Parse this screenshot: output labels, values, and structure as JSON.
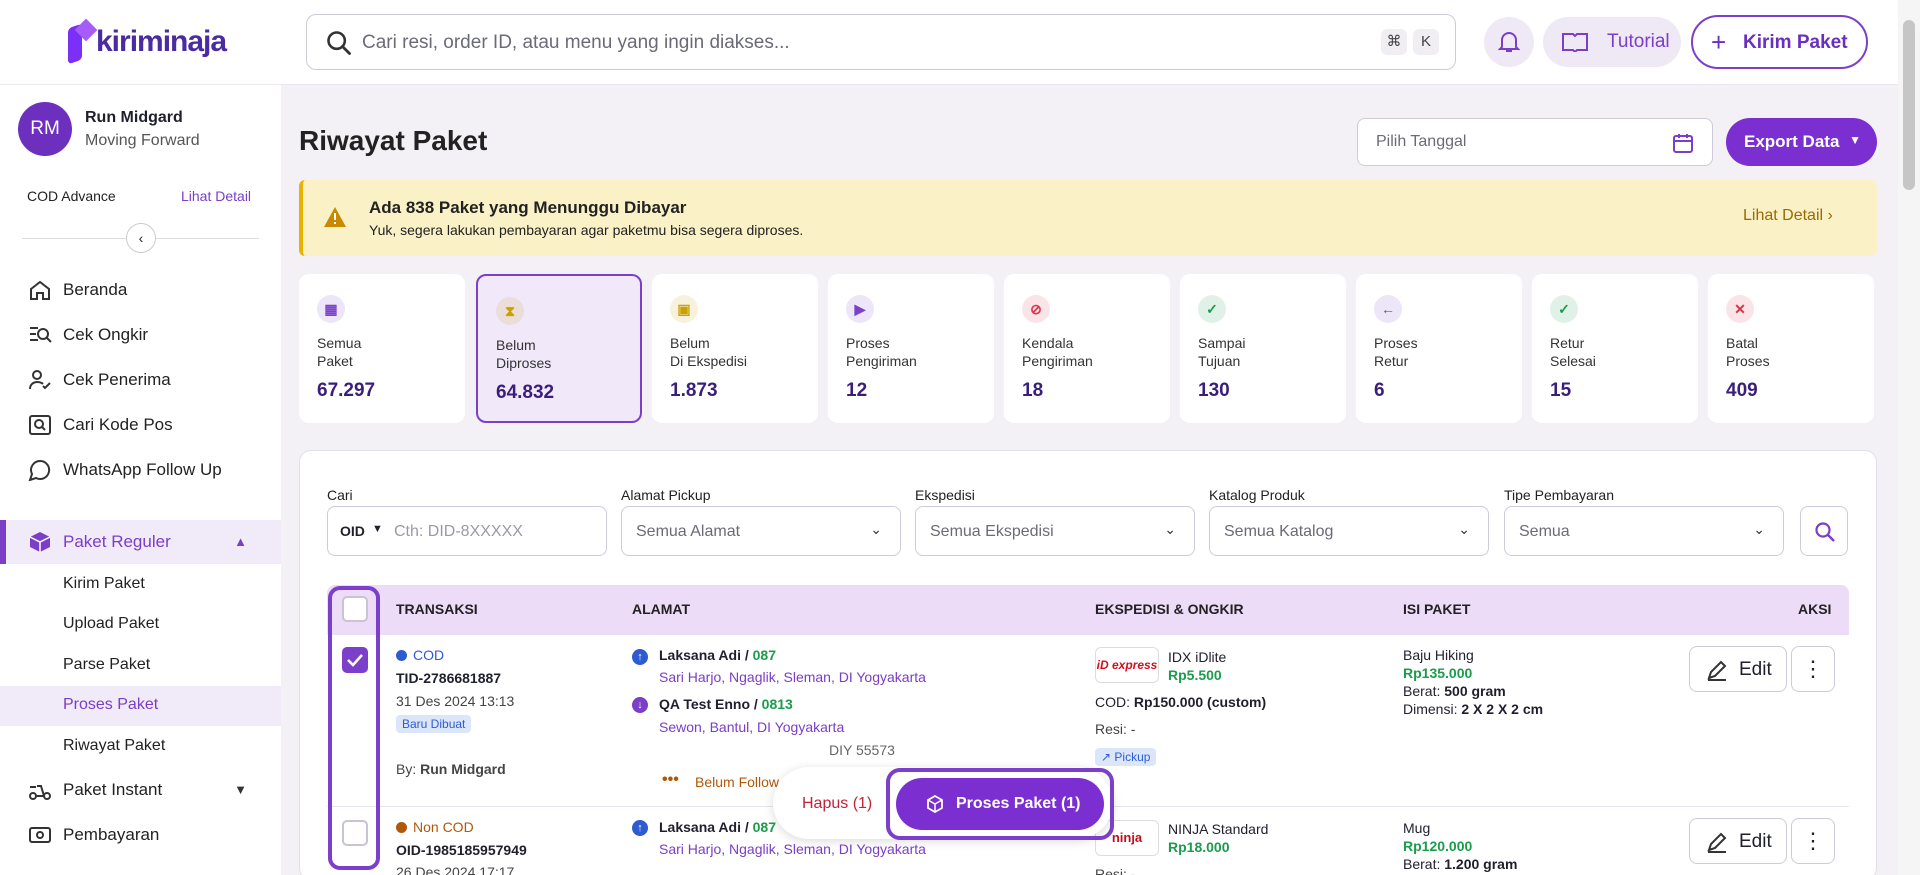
{
  "brand": {
    "name": "kiriminaja"
  },
  "search": {
    "placeholder": "Cari resi, order ID, atau menu yang ingin diakses...",
    "k1": "⌘",
    "k2": "K"
  },
  "header": {
    "tutorial": "Tutorial",
    "kirim": "Kirim Paket"
  },
  "user": {
    "initials": "RM",
    "name": "Run Midgard",
    "tag": "Moving Forward",
    "cod": "COD Advance",
    "detail": "Lihat Detail"
  },
  "nav": [
    {
      "label": "Beranda",
      "icon": "home-icon"
    },
    {
      "label": "Cek Ongkir",
      "icon": "price-search-icon"
    },
    {
      "label": "Cek Penerima",
      "icon": "user-check-icon"
    },
    {
      "label": "Cari Kode Pos",
      "icon": "postcode-icon"
    },
    {
      "label": "WhatsApp Follow Up",
      "icon": "whatsapp-icon"
    }
  ],
  "paket_reguler": {
    "label": "Paket Reguler",
    "subs": [
      "Kirim Paket",
      "Upload Paket",
      "Parse Paket",
      "Proses Paket",
      "Riwayat Paket"
    ]
  },
  "nav2": [
    {
      "label": "Paket Instant"
    },
    {
      "label": "Pembayaran"
    }
  ],
  "page": {
    "title": "Riwayat Paket",
    "date_placeholder": "Pilih Tanggal",
    "export": "Export Data"
  },
  "alert": {
    "title": "Ada 838 Paket yang Menunggu Dibayar",
    "subtitle": "Yuk, segera lakukan pembayaran agar paketmu bisa segera diproses.",
    "link": "Lihat Detail"
  },
  "stats": [
    {
      "label": "Semua Paket",
      "value": "67.297",
      "color": "#7b3fc9"
    },
    {
      "label": "Belum Diproses",
      "value": "64.832",
      "color": "#c9a100"
    },
    {
      "label": "Belum Di Ekspedisi",
      "value": "1.873",
      "color": "#c9a100"
    },
    {
      "label": "Proses Pengiriman",
      "value": "12",
      "color": "#7b3fc9"
    },
    {
      "label": "Kendala Pengiriman",
      "value": "18",
      "color": "#d9334b"
    },
    {
      "label": "Sampai Tujuan",
      "value": "130",
      "color": "#1a9c4b"
    },
    {
      "label": "Proses Retur",
      "value": "6",
      "color": "#7b3fc9"
    },
    {
      "label": "Retur Selesai",
      "value": "15",
      "color": "#1a9c4b"
    },
    {
      "label": "Batal Proses",
      "value": "409",
      "color": "#d9334b"
    }
  ],
  "filters": {
    "cari": "Cari",
    "oid": "OID",
    "oid_placeholder": "Cth: DID-8XXXXX",
    "pickup": "Alamat Pickup",
    "pickup_val": "Semua Alamat",
    "eks": "Ekspedisi",
    "eks_val": "Semua Ekspedisi",
    "kat": "Katalog Produk",
    "kat_val": "Semua Katalog",
    "tipe": "Tipe Pembayaran",
    "tipe_val": "Semua"
  },
  "table": {
    "headers": [
      "TRANSAKSI",
      "ALAMAT",
      "EKSPEDISI & ONGKIR",
      "ISI PAKET",
      "AKSI"
    ]
  },
  "rows": [
    {
      "type": "COD",
      "tid": "TID-2786681887",
      "date": "31 Des 2024 13:13",
      "status": "Baru Dibuat",
      "by_label": "By:",
      "by": "Run Midgard",
      "sender": "Laksana Adi",
      "sender_phone": "087",
      "sender_addr": "Sari Harjo, Ngaglik, Sleman, DI Yogyakarta",
      "recv": "QA Test Enno",
      "recv_phone": "0813",
      "recv_addr": "Sewon, Bantul, DI Yogyakarta",
      "postal": "DIY 55573",
      "follow": "Belum Follow",
      "courier_logo": "iD express",
      "courier": "IDX iDlite",
      "ongkir": "Rp5.500",
      "cod_label": "COD:",
      "cod_val": "Rp150.000 (custom)",
      "resi_label": "Resi:",
      "resi": "-",
      "pickup": "Pickup",
      "item": "Baju Hiking",
      "price": "Rp135.000",
      "berat_label": "Berat:",
      "berat": "500 gram",
      "dim_label": "Dimensi:",
      "dim": "2 X 2 X 2 cm",
      "edit": "Edit"
    },
    {
      "type": "Non COD",
      "tid": "OID-1985185957949",
      "date": "26 Des 2024 17:17",
      "sender": "Laksana Adi",
      "sender_phone": "087",
      "sender_addr": "Sari Harjo, Ngaglik, Sleman, DI Yogyakarta",
      "courier_logo": "ninja",
      "courier": "NINJA Standard",
      "ongkir": "Rp18.000",
      "resi_label": "Resi:",
      "resi": "-",
      "item": "Mug",
      "price": "Rp120.000",
      "berat_label": "Berat:",
      "berat": "1.200 gram",
      "edit": "Edit"
    }
  ],
  "actions": {
    "hapus": "Hapus (1)",
    "proses": "Proses Paket (1)"
  }
}
